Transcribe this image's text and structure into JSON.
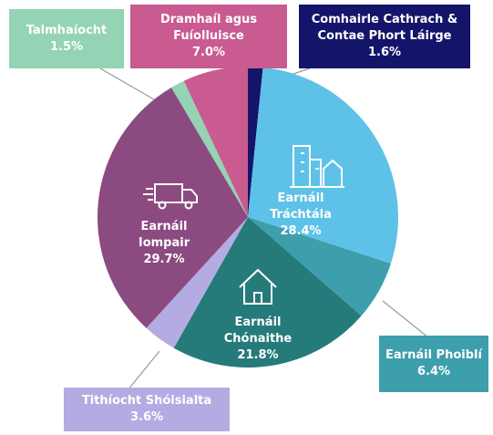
{
  "chart_data": {
    "type": "pie",
    "categories": [
      "Comhairle Cathrach & Contae Phort Láirge",
      "Earnáil Tráchtála",
      "Earnáil Phoiblí",
      "Earnáil Chónaithe",
      "Tithíocht Shóisialta",
      "Earnáil Iompair",
      "Talmhaíocht",
      "Dramhaíl agus Fuíolluisce"
    ],
    "values": [
      1.6,
      28.4,
      6.4,
      21.8,
      3.6,
      29.7,
      1.5,
      7.0
    ],
    "value_labels": [
      "1.6%",
      "28.4%",
      "6.4%",
      "21.8%",
      "3.6%",
      "29.7%",
      "1.5%",
      "7.0%"
    ],
    "colors": [
      "#14146a",
      "#5ec2e8",
      "#3d9eac",
      "#257b79",
      "#b4abe2",
      "#8c4b80",
      "#94d3b4",
      "#c95b90"
    ]
  }
}
